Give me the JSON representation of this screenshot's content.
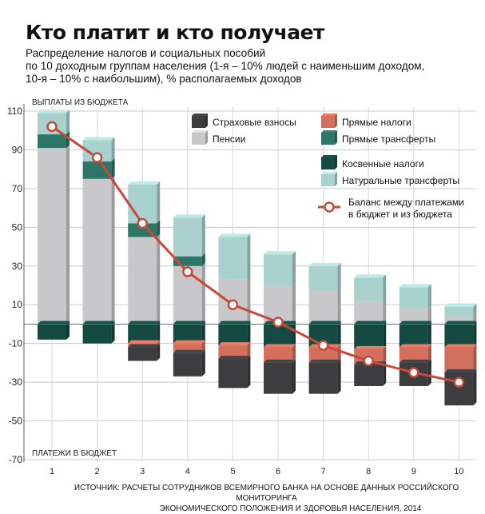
{
  "title": "Кто платит и кто получает",
  "subtitle_lines": [
    "Распределение налогов и социальных пособий",
    "по 10 доходным группам населения (1-я – 10% людей с наименьшим доходом,",
    "10-я – 10% с наибольшим),  % располагаемых доходов"
  ],
  "source_lines": [
    "ИСТОЧНИК: РАСЧЕТЫ СОТРУДНИКОВ ВСЕМИРНОГО БАНКА НА ОСНОВЕ ДАННЫХ РОССИЙСКОГО МОНИТОРИНГА",
    "ЭКОНОМИЧЕСКОГО ПОЛОЖЕНИЯ И ЗДОРОВЬЯ НАСЕЛЕНИЯ, 2014"
  ],
  "chart_data": {
    "type": "bar",
    "stacked": true,
    "top_axis_label": "ВЫПЛАТЫ  ИЗ  БЮДЖЕТА",
    "bottom_axis_label": "ПЛАТЕЖИ  В  БЮДЖЕТ",
    "y_ticks": [
      110,
      90,
      70,
      50,
      30,
      10,
      -10,
      -30,
      -50,
      -70
    ],
    "ylim": [
      -70,
      110
    ],
    "categories": [
      "1",
      "2",
      "3",
      "4",
      "5",
      "6",
      "7",
      "8",
      "9",
      "10"
    ],
    "positive_series": [
      {
        "name": "Пенсии",
        "color": "#c8c8ca",
        "values": [
          91,
          75,
          45,
          30,
          23,
          20,
          17,
          12,
          8,
          4
        ]
      },
      {
        "name": "Прямые трансферты",
        "color": "#2d7566",
        "values": [
          7,
          9,
          7,
          5,
          0,
          0,
          0,
          0,
          0,
          0
        ]
      },
      {
        "name": "Натуральные трансферты",
        "color": "#a9d1cd",
        "values": [
          11,
          11,
          20,
          20,
          22,
          16,
          13,
          12,
          11,
          5
        ]
      }
    ],
    "negative_series": [
      {
        "name": "Косвенные налоги",
        "color": "#154a42",
        "values": [
          -8,
          -10,
          -10,
          -10,
          -11,
          -12,
          -12,
          -13,
          -12,
          -12
        ]
      },
      {
        "name": "Прямые налоги",
        "color": "#d26f5d",
        "values": [
          0,
          0,
          -2,
          -5,
          -7,
          -8,
          -8,
          -8,
          -8,
          -13
        ]
      },
      {
        "name": "Страховые взносы",
        "color": "#3d3d3f",
        "values": [
          0,
          0,
          -7,
          -12,
          -15,
          -16,
          -16,
          -11,
          -12,
          -17
        ]
      }
    ],
    "balance": {
      "name": "Баланс между платежами в бюджет и из бюджета",
      "color": "#c9483c",
      "values": [
        102,
        86,
        52,
        27,
        10,
        1,
        -11,
        -19,
        -25,
        -30
      ]
    },
    "legend": {
      "col1": [
        "Страховые взносы",
        "Пенсии"
      ],
      "col2": [
        "Прямые налоги",
        "Прямые трансферты"
      ],
      "col3": [
        "Косвенные налоги",
        "Натуральные трансферты"
      ],
      "balance_lines": [
        "Баланс между платежами",
        "в бюджет и из бюджета"
      ]
    },
    "grid": true,
    "legend_position": "top-right"
  }
}
